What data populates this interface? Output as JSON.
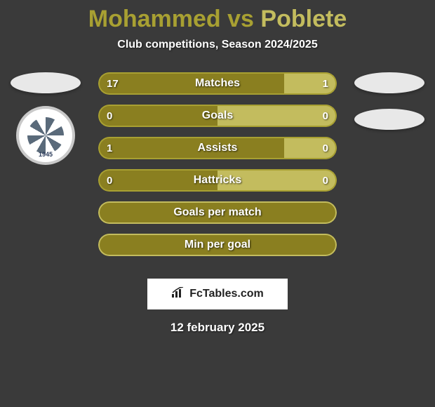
{
  "title": {
    "player1": "Mohammed",
    "vs": "vs",
    "player2": "Poblete",
    "player1_color": "#a8a032",
    "player2_color": "#c3bc5e"
  },
  "subtitle": "Club competitions, Season 2024/2025",
  "background_color": "#3a3a3a",
  "left_club": {
    "year": "1945"
  },
  "bars": {
    "track_color_dark": "#8a7f20",
    "track_color_light": "#c3bc5e",
    "border_color": "#a8a032",
    "border_color_light": "#c3bc5e",
    "height": 32,
    "gap": 14,
    "rows": [
      {
        "label": "Matches",
        "left_val": "17",
        "right_val": "1",
        "left_pct": 78,
        "right_pct": 22,
        "show_vals": true,
        "filled": true
      },
      {
        "label": "Goals",
        "left_val": "0",
        "right_val": "0",
        "left_pct": 50,
        "right_pct": 50,
        "show_vals": true,
        "filled": true
      },
      {
        "label": "Assists",
        "left_val": "1",
        "right_val": "0",
        "left_pct": 78,
        "right_pct": 22,
        "show_vals": true,
        "filled": true
      },
      {
        "label": "Hattricks",
        "left_val": "0",
        "right_val": "0",
        "left_pct": 50,
        "right_pct": 50,
        "show_vals": true,
        "filled": true
      },
      {
        "label": "Goals per match",
        "left_val": "",
        "right_val": "",
        "left_pct": 0,
        "right_pct": 0,
        "show_vals": false,
        "filled": false
      },
      {
        "label": "Min per goal",
        "left_val": "",
        "right_val": "",
        "left_pct": 0,
        "right_pct": 0,
        "show_vals": false,
        "filled": false
      }
    ]
  },
  "footer": {
    "brand": "FcTables.com",
    "date": "12 february 2025"
  }
}
